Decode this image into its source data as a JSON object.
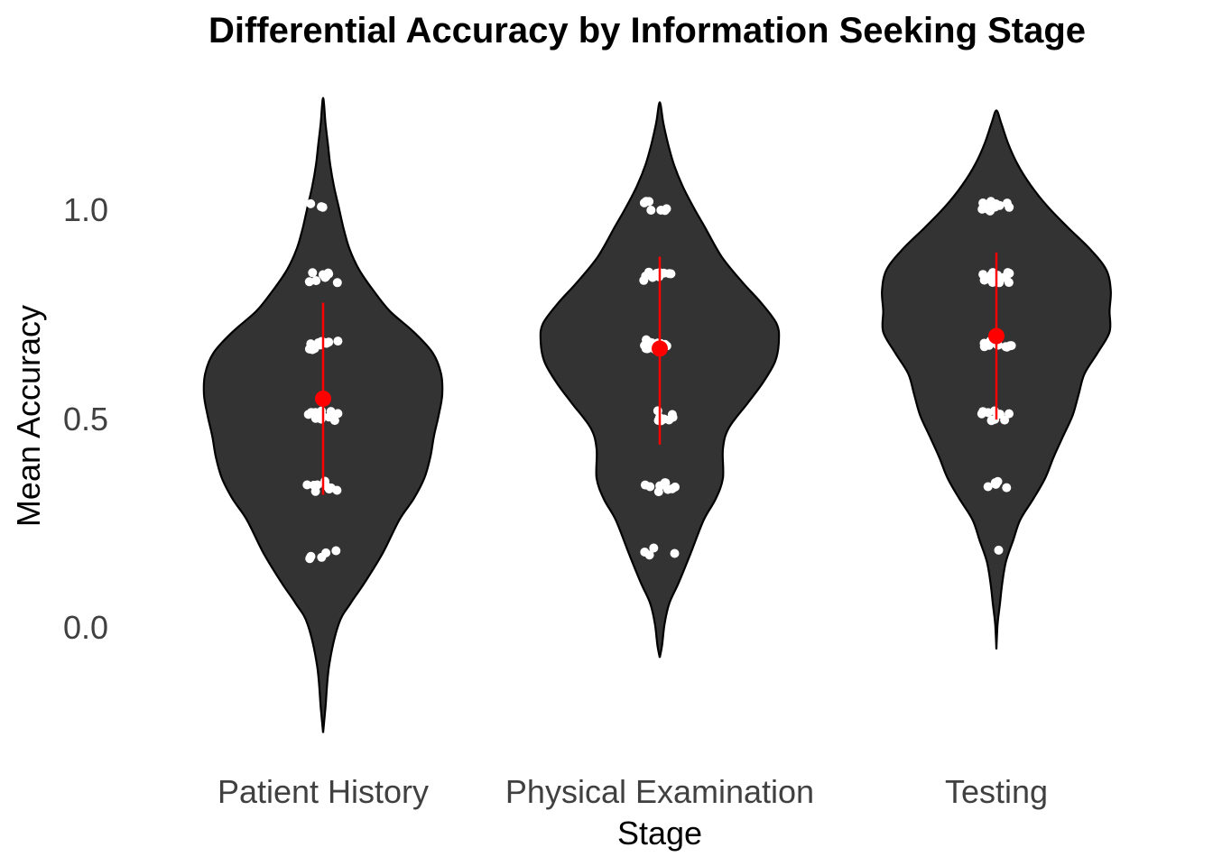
{
  "chart_data": {
    "type": "violin",
    "title": "Differential Accuracy by Information Seeking Stage",
    "xlabel": "Stage",
    "ylabel": "Mean Accuracy",
    "ylim": [
      -0.27,
      1.26
    ],
    "yticks": [
      "0.0",
      "0.5",
      "1.0"
    ],
    "categories": [
      "Patient History",
      "Physical Examination",
      "Testing"
    ],
    "grid": false,
    "colors": {
      "violin_fill": "#333333",
      "violin_stroke": "#000000",
      "points": "#ffffff",
      "summary": "#ff0000"
    },
    "series": [
      {
        "category": "Patient History",
        "range": [
          -0.26,
          1.26
        ],
        "mean": 0.54,
        "sd_low": 0.31,
        "sd_high": 0.77,
        "points": [
          {
            "y": 1.0,
            "n": 3
          },
          {
            "y": 0.83,
            "n": 9
          },
          {
            "y": 0.67,
            "n": 13
          },
          {
            "y": 0.5,
            "n": 13
          },
          {
            "y": 0.33,
            "n": 9
          },
          {
            "y": 0.17,
            "n": 5
          }
        ]
      },
      {
        "category": "Physical Examination",
        "range": [
          -0.08,
          1.25
        ],
        "mean": 0.66,
        "sd_low": 0.43,
        "sd_high": 0.88,
        "points": [
          {
            "y": 1.0,
            "n": 7
          },
          {
            "y": 0.83,
            "n": 11
          },
          {
            "y": 0.67,
            "n": 13
          },
          {
            "y": 0.5,
            "n": 8
          },
          {
            "y": 0.33,
            "n": 10
          },
          {
            "y": 0.17,
            "n": 4
          }
        ]
      },
      {
        "category": "Testing",
        "range": [
          -0.06,
          1.23
        ],
        "mean": 0.69,
        "sd_low": 0.49,
        "sd_high": 0.89,
        "points": [
          {
            "y": 1.0,
            "n": 12
          },
          {
            "y": 0.83,
            "n": 15
          },
          {
            "y": 0.67,
            "n": 12
          },
          {
            "y": 0.5,
            "n": 10
          },
          {
            "y": 0.33,
            "n": 5
          },
          {
            "y": 0.17,
            "n": 1
          }
        ]
      }
    ]
  }
}
